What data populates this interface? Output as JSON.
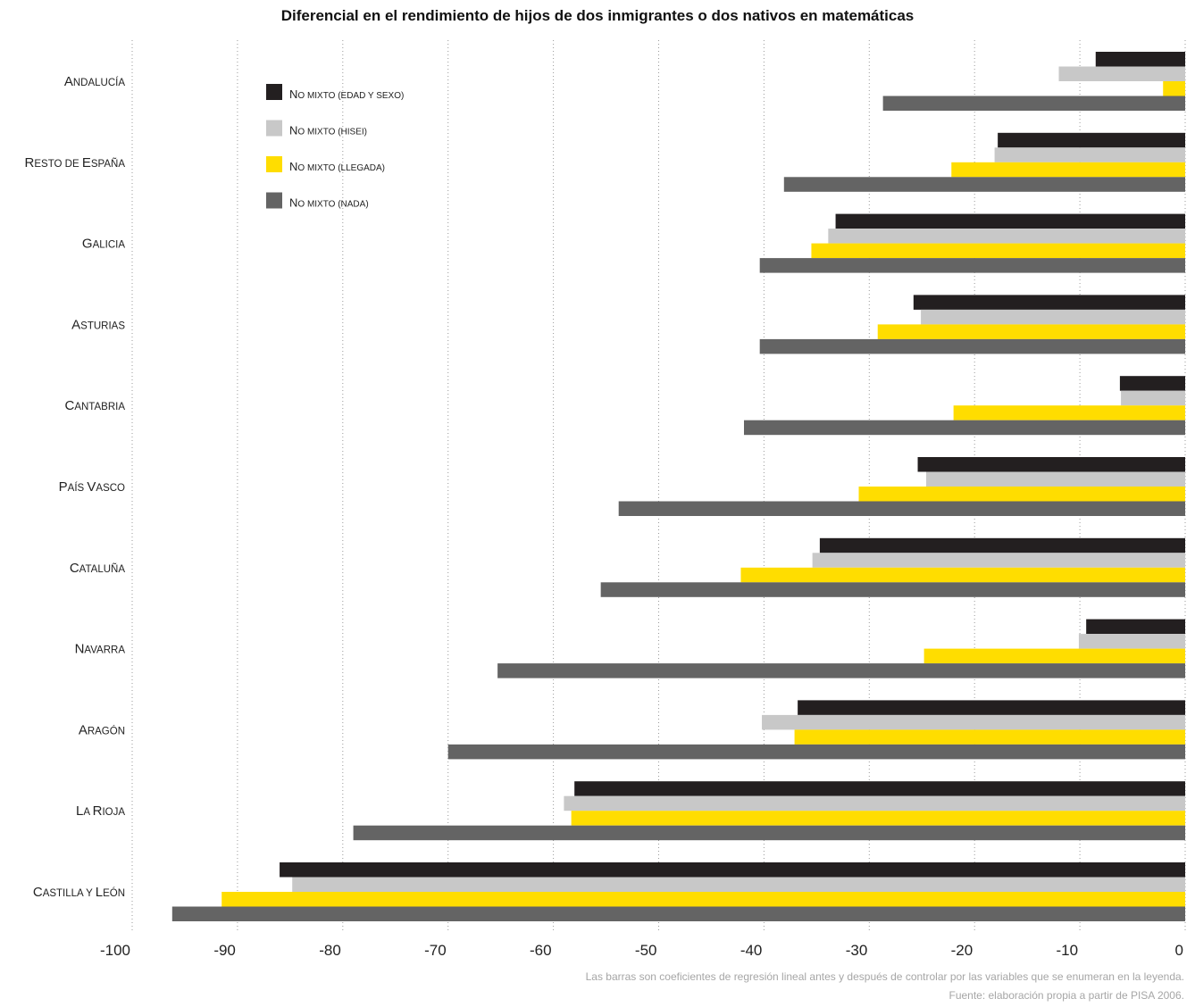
{
  "chart_data": {
    "type": "bar",
    "orientation": "horizontal",
    "title": "Diferencial en el rendimiento de hijos de dos inmigrantes o dos nativos en matemáticas",
    "categories": [
      "Andalucía",
      "Resto de España",
      "Galicia",
      "Asturias",
      "Cantabria",
      "País Vasco",
      "Cataluña",
      "Navarra",
      "Aragón",
      "La Rioja",
      "Castilla y León"
    ],
    "series": [
      {
        "name": "No mixto (edad y sexo)",
        "color": "#231f20",
        "values": [
          -8.5,
          -17.8,
          -33.2,
          -25.8,
          -6.2,
          -25.4,
          -34.7,
          -9.4,
          -36.8,
          -58.0,
          -86.0
        ]
      },
      {
        "name": "No mixto (hisei)",
        "color": "#c8c8c8",
        "values": [
          -12.0,
          -18.1,
          -33.9,
          -25.1,
          -6.1,
          -24.6,
          -35.4,
          -10.1,
          -40.2,
          -59.0,
          -84.8
        ]
      },
      {
        "name": "No mixto (llegada)",
        "color": "#ffdd00",
        "values": [
          -2.1,
          -22.2,
          -35.5,
          -29.2,
          -22.0,
          -31.0,
          -42.2,
          -24.8,
          -37.1,
          -58.3,
          -91.5
        ]
      },
      {
        "name": "No mixto (nada)",
        "color": "#646464",
        "values": [
          -28.7,
          -38.1,
          -40.4,
          -40.4,
          -41.9,
          -53.8,
          -55.5,
          -65.3,
          -70.0,
          -79.0,
          -96.2
        ]
      }
    ],
    "xlim": [
      -100,
      0
    ],
    "xticks": [
      -100,
      -90,
      -80,
      -70,
      -60,
      -50,
      -40,
      -30,
      -20,
      -10,
      0
    ],
    "grid": true,
    "legend_position": "top-left inside plot"
  },
  "footnotes": [
    "Las barras son coeficientes de regresión lineal antes y después de controlar por las variables que se enumeran en la leyenda.",
    "Fuente: elaboración propia a partir de PISA 2006."
  ]
}
